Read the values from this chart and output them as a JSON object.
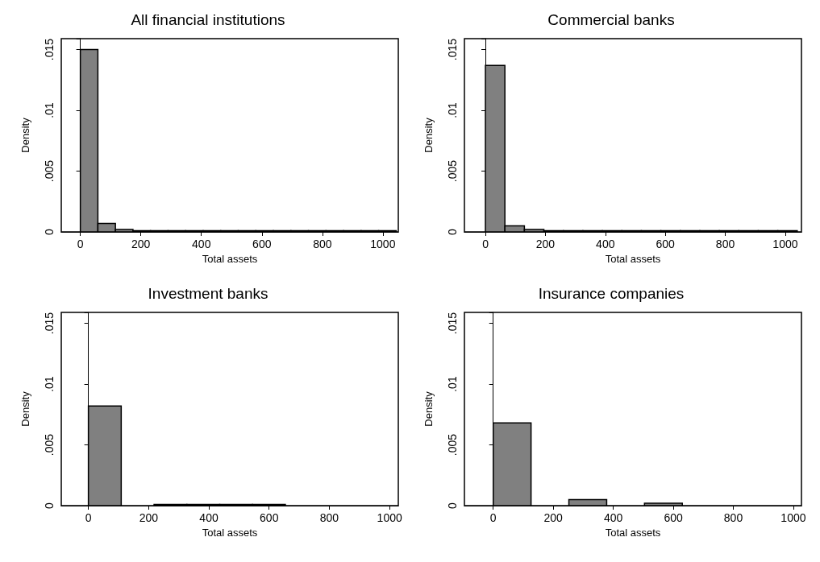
{
  "chart_data": [
    {
      "type": "histogram",
      "title": "All financial institutions",
      "xlabel": "Total assets",
      "ylabel": "Density",
      "color": "#808080",
      "bins": [
        0,
        58,
        116,
        174,
        232,
        290,
        348,
        406,
        464,
        522,
        580,
        638,
        696,
        754,
        812,
        870,
        928,
        986,
        1044
      ],
      "values": [
        0.015,
        0.0007,
        0.0002,
        0.0001,
        0.0001,
        0.0001,
        0.0001,
        0.0001,
        0.0001,
        0.0001,
        0.0001,
        0.0001,
        0.0001,
        0.0001,
        0.0001,
        0.0001,
        0.0001,
        0.0001
      ],
      "xlim": [
        -63,
        1051
      ],
      "ylim": [
        0,
        0.0159
      ],
      "xticks": [
        0,
        200,
        400,
        600,
        800,
        1000
      ],
      "yticks": [
        {
          "value": 0,
          "label": "0"
        },
        {
          "value": 0.005,
          "label": ".005"
        },
        {
          "value": 0.01,
          "label": ".01"
        },
        {
          "value": 0.015,
          "label": ".015"
        }
      ]
    },
    {
      "type": "histogram",
      "title": "Commercial banks",
      "xlabel": "Total assets",
      "ylabel": "Density",
      "color": "#808080",
      "bins": [
        0,
        65,
        130,
        195,
        260,
        325,
        390,
        455,
        520,
        585,
        650,
        715,
        780,
        845,
        910,
        975,
        1040
      ],
      "values": [
        0.0137,
        0.0005,
        0.0002,
        0.0001,
        0.0001,
        0.0001,
        0.0001,
        0.0001,
        0.0001,
        0.0001,
        0.0001,
        0.0001,
        0.0001,
        0.0001,
        0.0001,
        0.0001
      ],
      "xlim": [
        -70,
        1054
      ],
      "ylim": [
        0,
        0.0159
      ],
      "xticks": [
        0,
        200,
        400,
        600,
        800,
        1000
      ],
      "yticks": [
        {
          "value": 0,
          "label": "0"
        },
        {
          "value": 0.005,
          "label": ".005"
        },
        {
          "value": 0.01,
          "label": ".01"
        },
        {
          "value": 0.015,
          "label": ".015"
        }
      ]
    },
    {
      "type": "histogram",
      "title": "Investment banks",
      "xlabel": "Total assets",
      "ylabel": "Density",
      "color": "#808080",
      "bins": [
        0,
        109,
        218,
        327,
        436,
        545,
        654,
        763,
        872,
        981
      ],
      "values": [
        0.0082,
        null,
        0.0001,
        0.0001,
        0.0001,
        0.0001,
        null,
        null,
        null
      ],
      "xlim": [
        -90,
        1029
      ],
      "ylim": [
        0,
        0.0159
      ],
      "xticks": [
        0,
        200,
        400,
        600,
        800,
        1000
      ],
      "yticks": [
        {
          "value": 0,
          "label": "0"
        },
        {
          "value": 0.005,
          "label": ".005"
        },
        {
          "value": 0.01,
          "label": ".01"
        },
        {
          "value": 0.015,
          "label": ".015"
        }
      ]
    },
    {
      "type": "histogram",
      "title": "Insurance companies",
      "xlabel": "Total assets",
      "ylabel": "Density",
      "color": "#808080",
      "bins": [
        0,
        126,
        252,
        378,
        504,
        630,
        756,
        882,
        1008
      ],
      "values": [
        0.0068,
        null,
        0.0005,
        null,
        0.0002,
        null,
        null,
        null
      ],
      "xlim": [
        -96,
        1027
      ],
      "ylim": [
        0,
        0.0159
      ],
      "xticks": [
        0,
        200,
        400,
        600,
        800,
        1000
      ],
      "yticks": [
        {
          "value": 0,
          "label": "0"
        },
        {
          "value": 0.005,
          "label": ".005"
        },
        {
          "value": 0.01,
          "label": ".01"
        },
        {
          "value": 0.015,
          "label": ".015"
        }
      ]
    }
  ]
}
